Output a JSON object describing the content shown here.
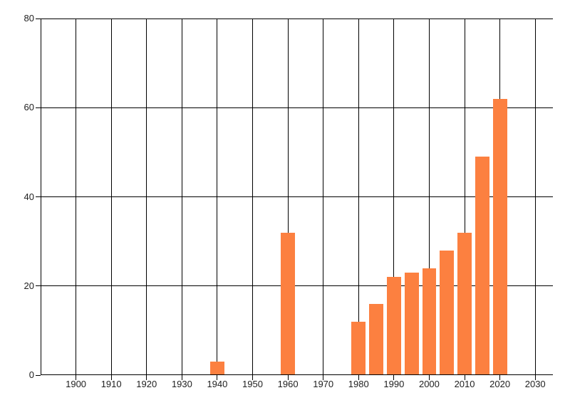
{
  "chart_data": {
    "type": "bar",
    "title": "",
    "xlabel": "",
    "ylabel": "",
    "x": [
      1940,
      1960,
      1980,
      1985,
      1990,
      1995,
      2000,
      2005,
      2010,
      2015,
      2020
    ],
    "values": [
      3,
      32,
      12,
      16,
      22,
      23,
      24,
      28,
      32,
      49,
      62
    ],
    "bar_width_x_units": 4,
    "xlim": [
      1890,
      2035
    ],
    "ylim": [
      0,
      80
    ],
    "x_ticks": [
      1900,
      1910,
      1920,
      1930,
      1940,
      1950,
      1960,
      1970,
      1980,
      1990,
      2000,
      2010,
      2020,
      2030
    ],
    "x_tick_labels": [
      "1900",
      "1910",
      "1920",
      "1930",
      "1940",
      "1950",
      "1960",
      "1970",
      "1980",
      "1990",
      "2000",
      "2010",
      "2020",
      "2030"
    ],
    "y_ticks": [
      0,
      20,
      40,
      60,
      80
    ],
    "y_tick_labels": [
      "0",
      "20",
      "40",
      "60",
      "80"
    ],
    "grid": "on",
    "legend": "none",
    "colors": {
      "bar": "#FC8040",
      "grid": "#000000",
      "axis": "#000000",
      "tick_label": "#212121",
      "background": "#FFFFFF"
    }
  }
}
